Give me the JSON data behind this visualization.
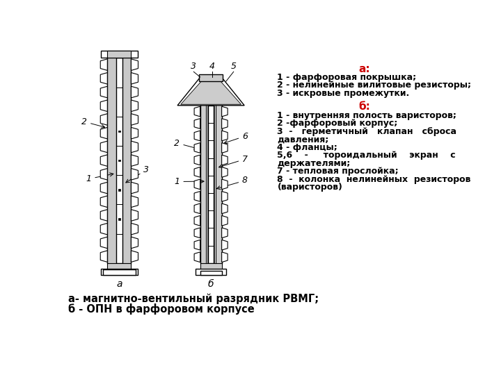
{
  "bg_color": "#ffffff",
  "title_a": "а:",
  "title_b": "б:",
  "title_color": "#cc0000",
  "text_color": "#000000",
  "legend_a": [
    "1 - фарфоровая покрышка;",
    "2 - нелинейные вилитовые резисторы;",
    "3 - искровые промежутки."
  ],
  "legend_b_lines": [
    [
      "1 - внутренняя полость варисторов;",
      false
    ],
    [
      "2 -фарфоровый корпус;",
      false
    ],
    [
      "3  -   герметичный   клапан   сброса",
      false
    ],
    [
      "давления;",
      false
    ],
    [
      "4 - фланцы;",
      false
    ],
    [
      "5,6    -     тороидальный    экран    с",
      false
    ],
    [
      "держателями;",
      false
    ],
    [
      "7 - тепловая прослойка;",
      false
    ],
    [
      "8  -  колонка  нелинейных  резисторов",
      false
    ],
    [
      "(варисторов)",
      false
    ]
  ],
  "caption_line1": "а- магнитно-вентильный разрядник РВМГ;",
  "caption_line2": "б - ОПН в фарфоровом корпусе",
  "font_size_legend": 9.0,
  "font_size_caption": 10.5,
  "font_size_title": 11,
  "font_size_labels": 9
}
